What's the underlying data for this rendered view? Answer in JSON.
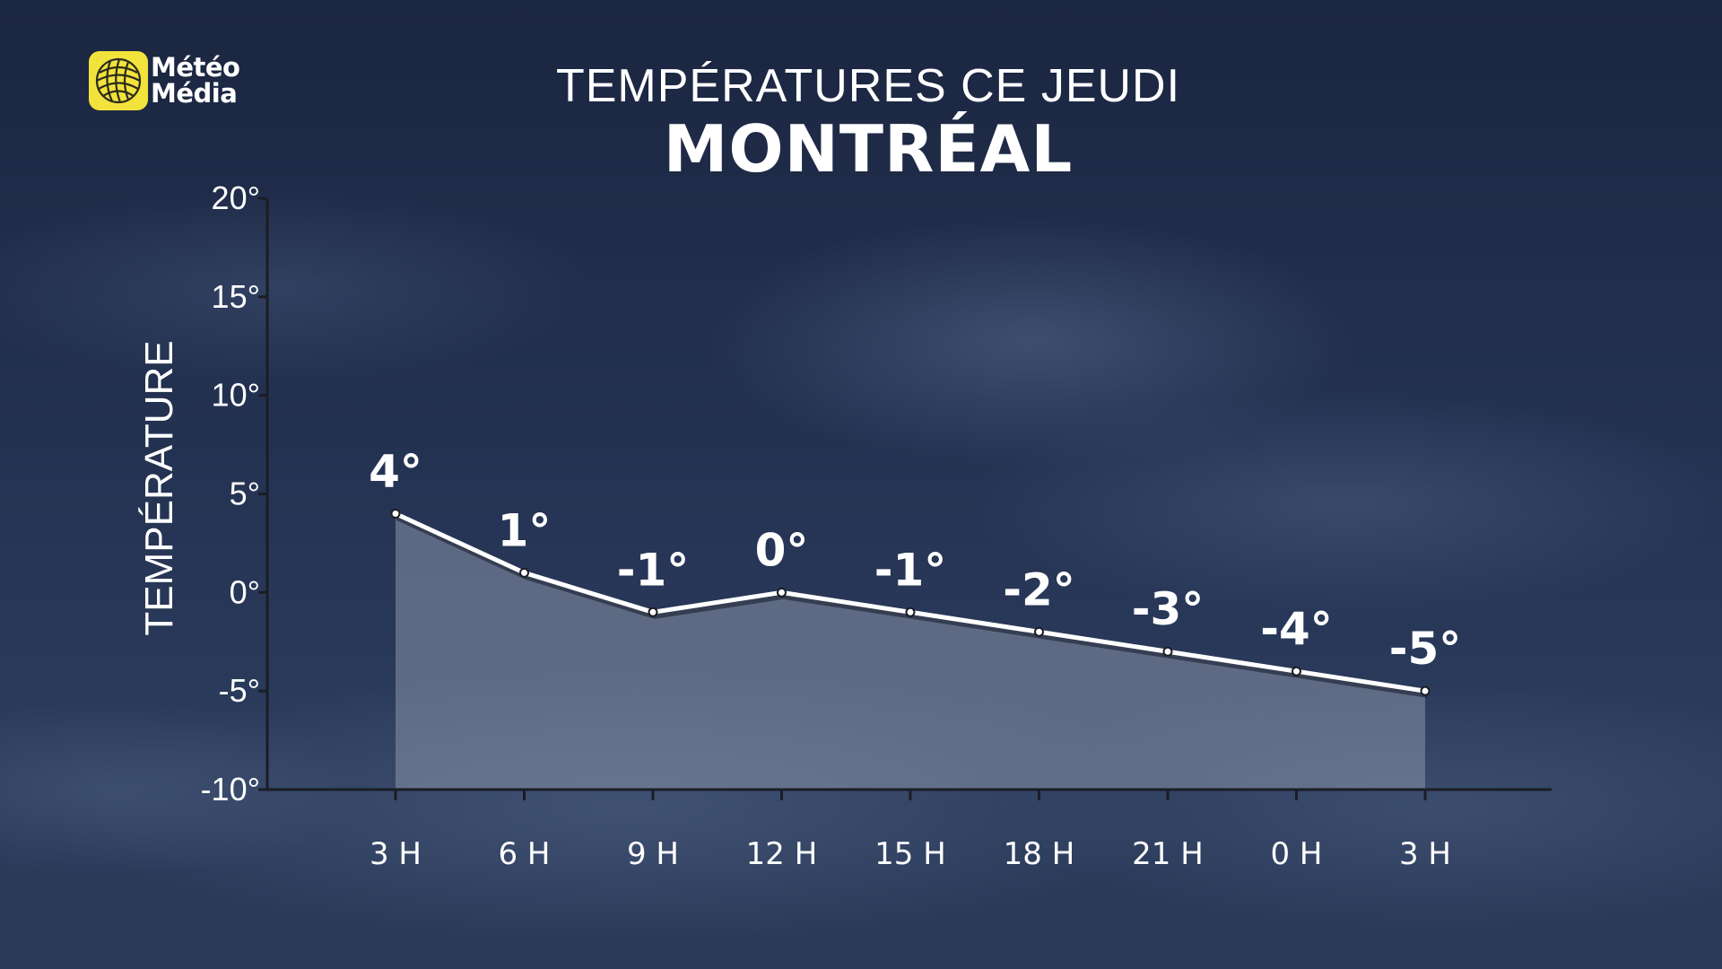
{
  "brand": {
    "name_line1": "Météo",
    "name_line2": "Média",
    "logo_color": "#f2e23c"
  },
  "chart_data": {
    "type": "area",
    "title": "TEMPÉRATURES CE JEUDI",
    "subtitle": "MONTRÉAL",
    "ylabel": "TEMPÉRATURE",
    "xlabel": "",
    "categories": [
      "3 H",
      "6 H",
      "9 H",
      "12 H",
      "15 H",
      "18 H",
      "21 H",
      "0 H",
      "3 H"
    ],
    "values": [
      4,
      1,
      -1,
      0,
      -1,
      -2,
      -3,
      -4,
      -5
    ],
    "data_labels": [
      "4°",
      "1°",
      "-1°",
      "0°",
      "-1°",
      "-2°",
      "-3°",
      "-4°",
      "-5°"
    ],
    "ylim": [
      -10,
      20
    ],
    "yticks": [
      20,
      15,
      10,
      5,
      0,
      -5,
      -10
    ],
    "ytick_labels": [
      "20°",
      "15°",
      "10°",
      "5°",
      "0°",
      "-5°",
      "-10°"
    ],
    "grid": false,
    "legend": "none",
    "colors": {
      "line": "#ffffff",
      "fill": "#8a93a8",
      "axis": "#1a1d24",
      "text": "#ffffff"
    }
  }
}
